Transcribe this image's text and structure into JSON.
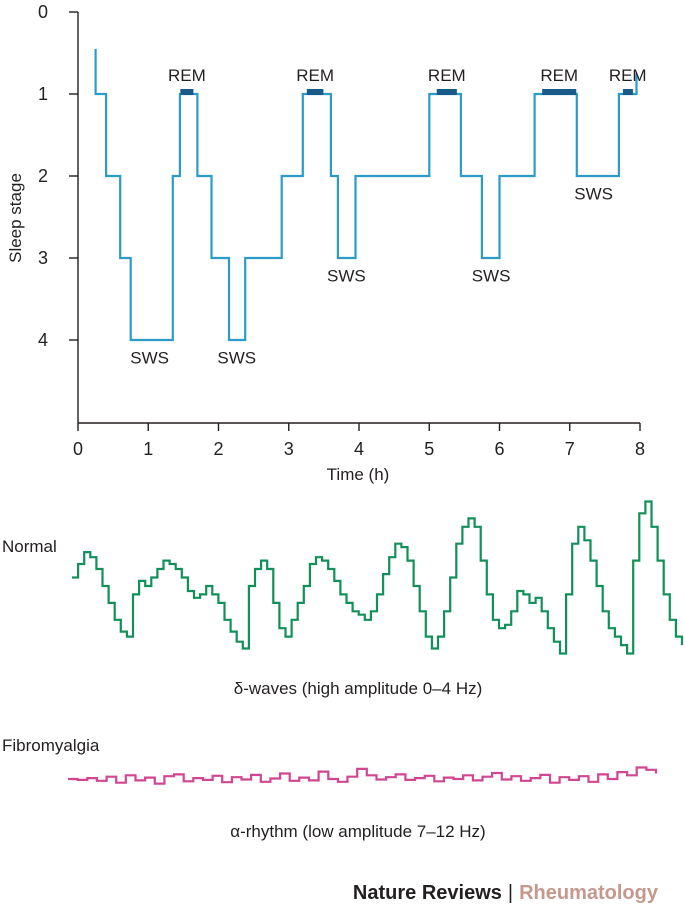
{
  "chart_data": {
    "type": "line",
    "ylabel": "Sleep stage",
    "xlabel": "Time (h)",
    "xlim": [
      0,
      8
    ],
    "ylim": [
      0,
      5
    ],
    "x_ticks": [
      "0",
      "1",
      "2",
      "3",
      "4",
      "5",
      "6",
      "7",
      "8"
    ],
    "y_ticks": [
      {
        "value": 0,
        "label": "0"
      },
      {
        "value": 1,
        "label": "1"
      },
      {
        "value": 2,
        "label": "2"
      },
      {
        "value": 3,
        "label": "3"
      },
      {
        "value": 4,
        "label": "4"
      }
    ],
    "hypnogram": [
      [
        0.25,
        0.45
      ],
      [
        0.25,
        1.0
      ],
      [
        0.4,
        1.0
      ],
      [
        0.4,
        2.0
      ],
      [
        0.6,
        2.0
      ],
      [
        0.6,
        3.0
      ],
      [
        0.75,
        3.0
      ],
      [
        0.75,
        4.0
      ],
      [
        1.35,
        4.0
      ],
      [
        1.35,
        2.0
      ],
      [
        1.45,
        2.0
      ],
      [
        1.45,
        1.0
      ],
      [
        1.7,
        1.0
      ],
      [
        1.7,
        2.0
      ],
      [
        1.9,
        2.0
      ],
      [
        1.9,
        3.0
      ],
      [
        2.15,
        3.0
      ],
      [
        2.15,
        4.0
      ],
      [
        2.38,
        4.0
      ],
      [
        2.38,
        3.0
      ],
      [
        2.9,
        3.0
      ],
      [
        2.9,
        2.0
      ],
      [
        3.2,
        2.0
      ],
      [
        3.2,
        1.0
      ],
      [
        3.6,
        1.0
      ],
      [
        3.6,
        2.0
      ],
      [
        3.7,
        2.0
      ],
      [
        3.7,
        3.0
      ],
      [
        3.95,
        3.0
      ],
      [
        3.95,
        2.0
      ],
      [
        5.0,
        2.0
      ],
      [
        5.0,
        1.0
      ],
      [
        5.45,
        1.0
      ],
      [
        5.45,
        2.0
      ],
      [
        5.75,
        2.0
      ],
      [
        5.75,
        3.0
      ],
      [
        6.0,
        3.0
      ],
      [
        6.0,
        2.0
      ],
      [
        6.5,
        2.0
      ],
      [
        6.5,
        1.0
      ],
      [
        7.1,
        1.0
      ],
      [
        7.1,
        2.0
      ],
      [
        7.7,
        2.0
      ],
      [
        7.7,
        1.0
      ],
      [
        7.95,
        1.0
      ],
      [
        7.95,
        0.75
      ]
    ],
    "rem_bars": [
      {
        "label": "REM",
        "start": 1.4,
        "end": 1.7
      },
      {
        "label": "REM",
        "start": 3.2,
        "end": 3.55
      },
      {
        "label": "REM",
        "start": 5.05,
        "end": 5.45
      },
      {
        "label": "REM",
        "start": 6.55,
        "end": 7.15
      },
      {
        "label": "REM",
        "start": 7.7,
        "end": 7.95
      }
    ],
    "sws_labels": [
      {
        "label": "SWS",
        "x": 1.02,
        "stage": 4.2
      },
      {
        "label": "SWS",
        "x": 2.26,
        "stage": 4.2
      },
      {
        "label": "SWS",
        "x": 3.82,
        "stage": 3.2
      },
      {
        "label": "SWS",
        "x": 5.88,
        "stage": 3.2
      },
      {
        "label": "SWS",
        "x": 7.34,
        "stage": 2.2
      }
    ],
    "series_colors": {
      "hypnogram": "#2a9cc7",
      "rem": "#1a5a88",
      "axis": "#231f20"
    }
  },
  "eeg": {
    "normal": {
      "label": "Normal",
      "caption": "δ-waves (high amplitude 0–4 Hz)",
      "color": "#12905a",
      "values": [
        0.5,
        0.58,
        0.65,
        0.62,
        0.55,
        0.45,
        0.35,
        0.25,
        0.18,
        0.15,
        0.4,
        0.48,
        0.45,
        0.5,
        0.55,
        0.6,
        0.58,
        0.55,
        0.5,
        0.42,
        0.38,
        0.4,
        0.45,
        0.4,
        0.35,
        0.25,
        0.18,
        0.12,
        0.08,
        0.45,
        0.55,
        0.6,
        0.55,
        0.35,
        0.2,
        0.15,
        0.25,
        0.35,
        0.45,
        0.58,
        0.62,
        0.6,
        0.55,
        0.48,
        0.4,
        0.35,
        0.3,
        0.28,
        0.25,
        0.3,
        0.4,
        0.52,
        0.62,
        0.7,
        0.68,
        0.6,
        0.45,
        0.3,
        0.15,
        0.08,
        0.15,
        0.3,
        0.5,
        0.7,
        0.8,
        0.85,
        0.8,
        0.6,
        0.4,
        0.25,
        0.2,
        0.22,
        0.3,
        0.42,
        0.4,
        0.35,
        0.38,
        0.3,
        0.2,
        0.12,
        0.05,
        0.4,
        0.7,
        0.8,
        0.72,
        0.6,
        0.45,
        0.3,
        0.2,
        0.15,
        0.1,
        0.05,
        0.6,
        0.88,
        0.95,
        0.8,
        0.6,
        0.4,
        0.25,
        0.15,
        0.1
      ]
    },
    "fibromyalgia": {
      "label": "Fibromyalgia",
      "caption": "α-rhythm (low amplitude 7–12 Hz)",
      "color": "#d0468f",
      "values": [
        0.5,
        0.48,
        0.52,
        0.46,
        0.55,
        0.42,
        0.58,
        0.47,
        0.53,
        0.4,
        0.56,
        0.6,
        0.45,
        0.52,
        0.48,
        0.57,
        0.43,
        0.54,
        0.49,
        0.59,
        0.44,
        0.51,
        0.62,
        0.46,
        0.53,
        0.47,
        0.66,
        0.5,
        0.44,
        0.55,
        0.72,
        0.58,
        0.49,
        0.54,
        0.6,
        0.48,
        0.52,
        0.57,
        0.45,
        0.53,
        0.5,
        0.58,
        0.47,
        0.55,
        0.63,
        0.49,
        0.56,
        0.46,
        0.52,
        0.59,
        0.42,
        0.54,
        0.48,
        0.56,
        0.44,
        0.6,
        0.5,
        0.65,
        0.58,
        0.75,
        0.7,
        0.62
      ]
    }
  },
  "credit": {
    "journal": "Nature Reviews",
    "separator": "|",
    "subject": "Rheumatology"
  }
}
